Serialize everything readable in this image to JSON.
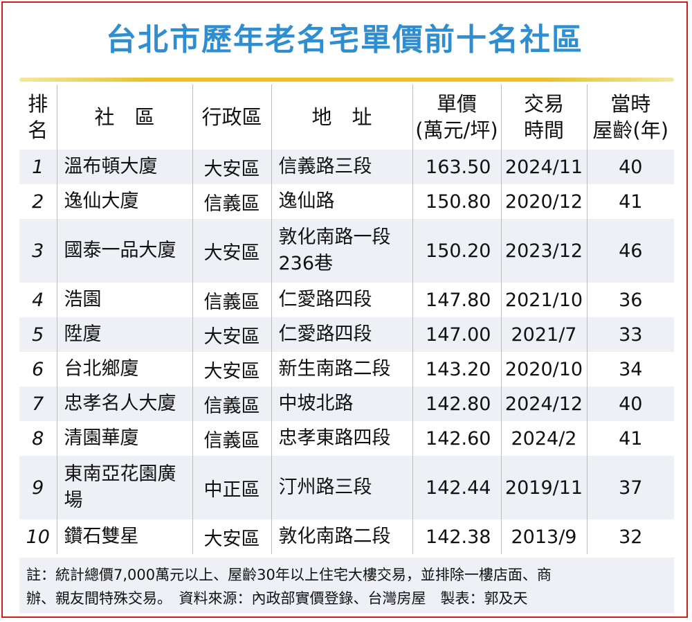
{
  "title": "台北市歷年老名宅單價前十名社區",
  "headers": {
    "rank": [
      "排",
      "名"
    ],
    "community": "社　區",
    "district": "行政區",
    "address": "地　址",
    "price": [
      "單價",
      "(萬元/坪)"
    ],
    "time": [
      "交易",
      "時間"
    ],
    "age": [
      "當時",
      "屋齡(年)"
    ]
  },
  "rows": [
    {
      "rank": "1",
      "community": "溫布頓大廈",
      "district": "大安區",
      "address": "信義路三段",
      "price": "163.50",
      "time": "2024/11",
      "age": "40"
    },
    {
      "rank": "2",
      "community": "逸仙大廈",
      "district": "信義區",
      "address": "逸仙路",
      "price": "150.80",
      "time": "2020/12",
      "age": "41"
    },
    {
      "rank": "3",
      "community": "國泰一品大廈",
      "district": "大安區",
      "address": "敦化南路一段236巷",
      "price": "150.20",
      "time": "2023/12",
      "age": "46"
    },
    {
      "rank": "4",
      "community": "浩園",
      "district": "信義區",
      "address": "仁愛路四段",
      "price": "147.80",
      "time": "2021/10",
      "age": "36"
    },
    {
      "rank": "5",
      "community": "陞廈",
      "district": "大安區",
      "address": "仁愛路四段",
      "price": "147.00",
      "time": "2021/7",
      "age": "33"
    },
    {
      "rank": "6",
      "community": "台北鄉廈",
      "district": "大安區",
      "address": "新生南路二段",
      "price": "143.20",
      "time": "2020/10",
      "age": "34"
    },
    {
      "rank": "7",
      "community": "忠孝名人大廈",
      "district": "信義區",
      "address": "中坡北路",
      "price": "142.80",
      "time": "2024/12",
      "age": "40"
    },
    {
      "rank": "8",
      "community": "清園華廈",
      "district": "信義區",
      "address": "忠孝東路四段",
      "price": "142.60",
      "time": "2024/2",
      "age": "41"
    },
    {
      "rank": "9",
      "community": "東南亞花園廣場",
      "district": "中正區",
      "address": "汀州路三段",
      "price": "142.44",
      "time": "2019/11",
      "age": "37"
    },
    {
      "rank": "10",
      "community": "鑽石雙星",
      "district": "大安區",
      "address": "敦化南路二段",
      "price": "142.38",
      "time": "2013/9",
      "age": "32"
    }
  ],
  "note": {
    "line1": "註：統計總價7,000萬元以上、屋齡30年以上住宅大樓交易，並排除一樓店面、商",
    "line2": "辦、親友間特殊交易。　資料來源：內政部實價登錄、台灣房屋　製表：郭及天"
  },
  "colors": {
    "title": "#2e8ed0",
    "rank": "#d4281e",
    "border": "#c8201a",
    "stripe": "#eef0f6",
    "gold": "#e8c02a"
  }
}
